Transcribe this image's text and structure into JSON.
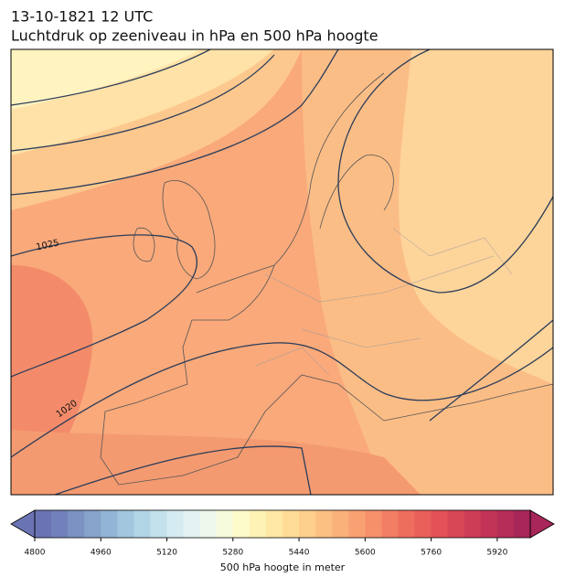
{
  "header": {
    "title": "13-10-1821 12 UTC",
    "subtitle": "Luchtdruk op zeeniveau in hPa en 500 hPa hoogte"
  },
  "contours": {
    "labels": [
      "1025",
      "1020"
    ]
  },
  "colorbar": {
    "label": "500 hPa hoogte in meter",
    "lim": [
      4800,
      6000
    ],
    "ticks": [
      4800,
      4960,
      5120,
      5280,
      5440,
      5600,
      5760,
      5920
    ],
    "colors": [
      "#6a74b4",
      "#7181bb",
      "#7b92c3",
      "#86a3cc",
      "#92b4d5",
      "#a1c6dd",
      "#b2d5e6",
      "#c3e1ec",
      "#d4ebf1",
      "#e3f3f3",
      "#eef8ec",
      "#f7fbdd",
      "#fdfbc9",
      "#fef3b4",
      "#fee8a4",
      "#fedc98",
      "#fdcf8d",
      "#fcc083",
      "#fbb17a",
      "#f9a172",
      "#f6906b",
      "#f27f64",
      "#ee6e5e",
      "#e95f5a",
      "#e25257",
      "#d84756",
      "#cd3d56",
      "#c13457",
      "#b52d58",
      "#a82659"
    ]
  }
}
